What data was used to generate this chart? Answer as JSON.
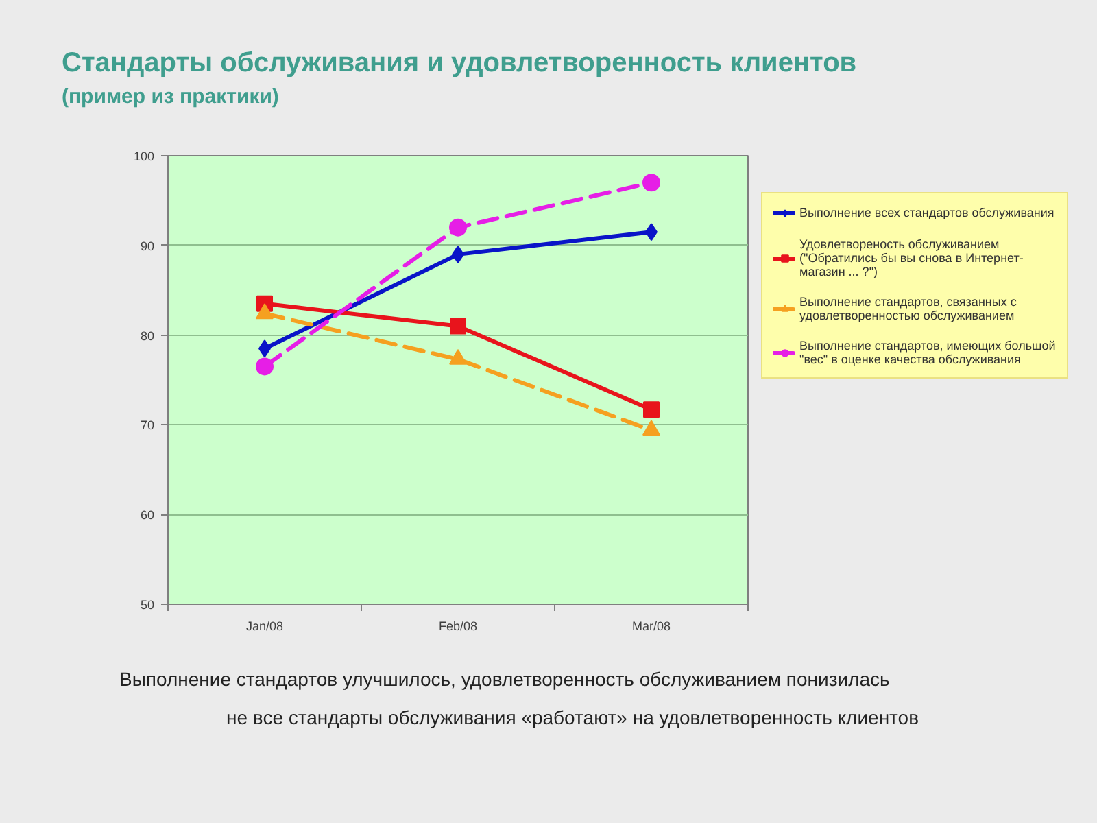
{
  "chart_data": {
    "type": "line",
    "title": "Стандарты обслуживания и удовлетворенность клиентов",
    "subtitle": "(пример из практики)",
    "categories": [
      "Jan/08",
      "Feb/08",
      "Mar/08"
    ],
    "series": [
      {
        "name": "Выполнение всех стандартов обслуживания",
        "color": "#0a14c8",
        "values": [
          78.5,
          89,
          91.5
        ],
        "marker": "diamond",
        "line_style": "solid"
      },
      {
        "name": "Удовлетвореность обслуживанием (\"Обратились бы вы снова в Интернет-магазин ... ?\")",
        "color": "#e8141c",
        "values": [
          83.5,
          81,
          71.7
        ],
        "marker": "square",
        "line_style": "solid"
      },
      {
        "name": "Выполнение стандартов, связанных с удовлетворенностью обслуживанием",
        "color": "#f5a020",
        "values": [
          82.4,
          77.3,
          69.4
        ],
        "marker": "triangle",
        "line_style": "dashed"
      },
      {
        "name": "Выполнение стандартов, имеющих большой \"вес\" в оценке качества обслуживания",
        "color": "#e61ee6",
        "values": [
          76.5,
          92,
          97
        ],
        "marker": "circle",
        "line_style": "dashed"
      }
    ],
    "ylim": [
      50,
      100
    ],
    "yticks": [
      50,
      60,
      70,
      80,
      90,
      100
    ],
    "grid": "y",
    "legend": "right",
    "annotations": [
      "Выполнение стандартов улучшилось, удовлетворенность обслуживанием понизилась",
      "не все стандарты обслуживания «работают» на удовлетворенность клиентов"
    ]
  }
}
